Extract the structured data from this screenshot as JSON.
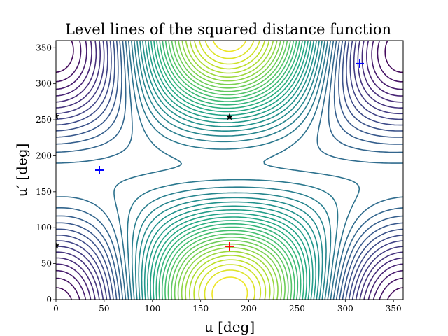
{
  "chart_data": {
    "type": "contour",
    "title": "Level lines of the squared distance function",
    "xlabel": "u [deg]",
    "ylabel": "u′ [deg]",
    "xlim": [
      0,
      360
    ],
    "ylim": [
      0,
      360
    ],
    "xticks": [
      "0",
      "50",
      "100",
      "150",
      "200",
      "250",
      "300",
      "350"
    ],
    "yticks": [
      "0",
      "50",
      "100",
      "150",
      "200",
      "250",
      "300",
      "350"
    ],
    "grid": false,
    "colormap": "viridis",
    "minima": [
      {
        "x": 45,
        "y": 180,
        "color": "#0000ff"
      },
      {
        "x": 315,
        "y": 328,
        "color": "#0000ff"
      },
      {
        "x": 180,
        "y": 74,
        "color": "#ff0000"
      }
    ],
    "saddles": [
      {
        "x": 180,
        "y": 254
      },
      {
        "x": 0,
        "y": 255
      },
      {
        "x": 0,
        "y": 75
      }
    ],
    "maximum": {
      "x": 180,
      "y": 74,
      "color": "#ff0000"
    }
  }
}
